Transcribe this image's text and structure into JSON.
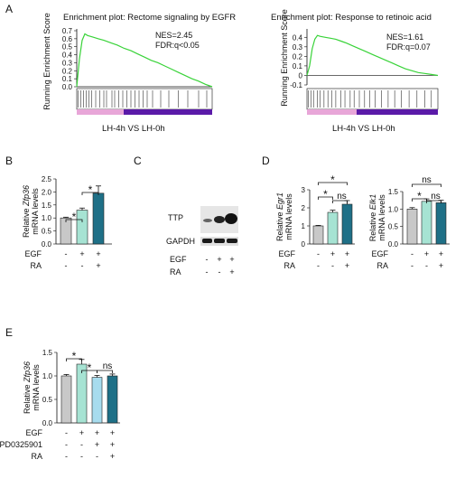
{
  "panels": {
    "a": "A",
    "b": "B",
    "c": "C",
    "d": "D",
    "e": "E"
  },
  "colors": {
    "grey": "#c8c8c8",
    "mint": "#a6e3d3",
    "teal": "#1f7087",
    "green_line": "#39d339",
    "pink": "#e8a6d8",
    "purple": "#5a1aa8"
  },
  "chart_data": [
    {
      "type": "line",
      "title": "Enrichment plot: Rectome signaling by EGFR",
      "ylabel": "Running Enrichment Score",
      "yticks": [
        "0.7",
        "0.6",
        "0.5",
        "0.4",
        "0.3",
        "0.2",
        "0.1",
        "0.0"
      ],
      "ylim": [
        0,
        0.7
      ],
      "stats": [
        "NES=2.45",
        "FDR:q<0.05"
      ],
      "comparison": "LH-4h  VS LH-0h",
      "x": [
        0,
        0.02,
        0.04,
        0.06,
        0.08,
        0.1,
        0.12,
        0.16,
        0.2,
        0.25,
        0.3,
        0.35,
        0.4,
        0.45,
        0.5,
        0.55,
        0.6,
        0.65,
        0.7,
        0.75,
        0.8,
        0.85,
        0.9,
        0.95,
        1.0
      ],
      "y": [
        0,
        0.35,
        0.58,
        0.66,
        0.64,
        0.63,
        0.62,
        0.6,
        0.58,
        0.55,
        0.52,
        0.48,
        0.45,
        0.41,
        0.37,
        0.33,
        0.3,
        0.26,
        0.22,
        0.18,
        0.14,
        0.1,
        0.07,
        0.03,
        0.0
      ],
      "hits": [
        0.01,
        0.03,
        0.05,
        0.07,
        0.09,
        0.11,
        0.14,
        0.17,
        0.2,
        0.22,
        0.26,
        0.28,
        0.31,
        0.34,
        0.37,
        0.4,
        0.43,
        0.46,
        0.49,
        0.52,
        0.56,
        0.62,
        0.68,
        0.75,
        0.82,
        0.9,
        0.96
      ]
    },
    {
      "type": "line",
      "title": "Enrichment plot: Response to retinoic acid",
      "ylabel": "Running Enrichment Score",
      "yticks": [
        "0.4",
        "0.3",
        "0.2",
        "0.1",
        "0",
        "-0.1"
      ],
      "ylim": [
        -0.1,
        0.45
      ],
      "stats": [
        "NES=1.61",
        "FDR:q=0.07"
      ],
      "comparison": "LH-4h  VS LH-0h",
      "x": [
        0,
        0.02,
        0.04,
        0.06,
        0.08,
        0.1,
        0.14,
        0.18,
        0.22,
        0.26,
        0.3,
        0.35,
        0.4,
        0.45,
        0.5,
        0.55,
        0.6,
        0.65,
        0.7,
        0.75,
        0.8,
        0.85,
        0.9,
        0.95,
        1.0
      ],
      "y": [
        0,
        0.1,
        0.28,
        0.38,
        0.42,
        0.41,
        0.4,
        0.39,
        0.38,
        0.36,
        0.34,
        0.31,
        0.28,
        0.25,
        0.22,
        0.19,
        0.16,
        0.13,
        0.1,
        0.07,
        0.05,
        0.03,
        0.02,
        0.01,
        0.0
      ],
      "hits": [
        0.01,
        0.03,
        0.05,
        0.08,
        0.1,
        0.13,
        0.16,
        0.19,
        0.22,
        0.26,
        0.29,
        0.33,
        0.36,
        0.4,
        0.44,
        0.48,
        0.52,
        0.57,
        0.62,
        0.67,
        0.72,
        0.78,
        0.84,
        0.9,
        0.95
      ]
    },
    {
      "type": "bar",
      "ylabel_prefix": "Relative ",
      "ylabel_gene": "Zfp36",
      "ylabel_suffix": "mRNA levels",
      "yticks": [
        "0.0",
        "0.5",
        "1.0",
        "1.5",
        "2.0",
        "2.5"
      ],
      "ylim": [
        0,
        2.5
      ],
      "values": [
        1.0,
        1.3,
        1.95
      ],
      "errors": [
        0.03,
        0.08,
        0.28
      ],
      "rows": [
        {
          "label": "EGF",
          "marks": [
            "-",
            "+",
            "+"
          ]
        },
        {
          "label": "RA",
          "marks": [
            "-",
            "-",
            "+"
          ]
        }
      ],
      "sig": [
        "*",
        "*"
      ]
    },
    {
      "type": "bar",
      "ylabel_prefix": "Relative ",
      "ylabel_gene": "Egr1",
      "ylabel_suffix": "mRNA levels",
      "yticks": [
        "0",
        "1",
        "2",
        "3"
      ],
      "ylim": [
        0,
        3
      ],
      "values": [
        1.0,
        1.75,
        2.2
      ],
      "errors": [
        0.03,
        0.12,
        0.2
      ],
      "rows": [
        {
          "label": "EGF",
          "marks": [
            "-",
            "+",
            "+"
          ]
        },
        {
          "label": "RA",
          "marks": [
            "-",
            "-",
            "+"
          ]
        }
      ],
      "sig": [
        "*",
        "*",
        "ns"
      ]
    },
    {
      "type": "bar",
      "ylabel_prefix": "Relative ",
      "ylabel_gene": "Elk1",
      "ylabel_suffix": "mRNA levels",
      "yticks": [
        "0.0",
        "0.5",
        "1.0",
        "1.5"
      ],
      "ylim": [
        0,
        1.5
      ],
      "values": [
        1.0,
        1.22,
        1.18
      ],
      "errors": [
        0.04,
        0.07,
        0.07
      ],
      "rows": [
        {
          "label": "EGF",
          "marks": [
            "-",
            "+",
            "+"
          ]
        },
        {
          "label": "RA",
          "marks": [
            "-",
            "-",
            "+"
          ]
        }
      ],
      "sig": [
        "ns",
        "*",
        "ns"
      ]
    },
    {
      "type": "bar",
      "ylabel_prefix": "Relative ",
      "ylabel_gene": "Zfp36",
      "ylabel_suffix": "mRNA levels",
      "yticks": [
        "0.0",
        "0.5",
        "1.0",
        "1.5"
      ],
      "ylim": [
        0,
        1.5
      ],
      "values": [
        1.0,
        1.25,
        0.97,
        1.0
      ],
      "errors": [
        0.03,
        0.1,
        0.04,
        0.04
      ],
      "rows": [
        {
          "label": "EGF",
          "marks": [
            "-",
            "+",
            "+",
            "+"
          ]
        },
        {
          "label": "PD0325901",
          "marks": [
            "-",
            "-",
            "+",
            "+"
          ]
        },
        {
          "label": "RA",
          "marks": [
            "-",
            "-",
            "-",
            "+"
          ]
        }
      ],
      "sig": [
        "*",
        "*",
        "ns"
      ]
    }
  ],
  "blot": {
    "labels": [
      "TTP",
      "GAPDH"
    ],
    "rows": [
      {
        "label": "EGF",
        "marks": [
          "-",
          "+",
          "+"
        ]
      },
      {
        "label": "RA",
        "marks": [
          "-",
          "-",
          "+"
        ]
      }
    ]
  }
}
